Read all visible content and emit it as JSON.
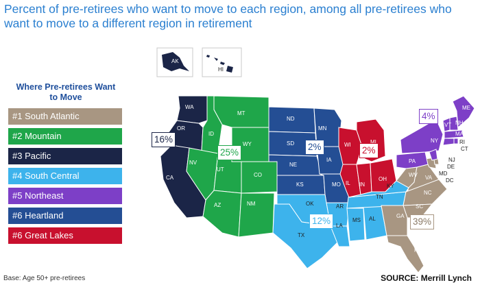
{
  "title": "Percent of pre-retirees who want to move to each region, among all pre-retirees who want to move to a different region in retirement",
  "legend": {
    "title": "Where Pre-retirees Want to Move",
    "items": [
      {
        "label": "#1 South Atlantic",
        "color": "#a89682"
      },
      {
        "label": "#2 Mountain",
        "color": "#1fa64a"
      },
      {
        "label": "#3 Pacific",
        "color": "#1b2547"
      },
      {
        "label": "#4 South Central",
        "color": "#3db3ec"
      },
      {
        "label": "#5 Northeast",
        "color": "#7d3fc7"
      },
      {
        "label": "#6 Heartland",
        "color": "#244e94"
      },
      {
        "label": "#6 Great Lakes",
        "color": "#c8102e"
      }
    ]
  },
  "regions": [
    {
      "name": "South Atlantic",
      "pct": "39%",
      "color": "#a89682"
    },
    {
      "name": "Mountain",
      "pct": "25%",
      "color": "#1fa64a"
    },
    {
      "name": "Pacific",
      "pct": "16%",
      "color": "#1b2547"
    },
    {
      "name": "South Central",
      "pct": "12%",
      "color": "#3db3ec"
    },
    {
      "name": "Northeast",
      "pct": "4%",
      "color": "#7d3fc7"
    },
    {
      "name": "Heartland",
      "pct": "2%",
      "color": "#244e94"
    },
    {
      "name": "Great Lakes",
      "pct": "2%",
      "color": "#c8102e"
    }
  ],
  "states": {
    "WA": "WA",
    "OR": "OR",
    "CA": "CA",
    "AK": "AK",
    "HI": "HI",
    "ID": "ID",
    "MT": "MT",
    "WY": "WY",
    "NV": "NV",
    "UT": "UT",
    "CO": "CO",
    "AZ": "AZ",
    "NM": "NM",
    "ND": "ND",
    "SD": "SD",
    "NE": "NE",
    "KS": "KS",
    "MN": "MN",
    "IA": "IA",
    "MO": "MO",
    "WI": "WI",
    "MI": "MI",
    "IL": "IL",
    "IN": "IN",
    "OH": "OH",
    "OK": "OK",
    "TX": "TX",
    "AR": "AR",
    "LA": "LA",
    "MS": "MS",
    "AL": "AL",
    "TN": "TN",
    "KY": "KY",
    "ME": "ME",
    "NH": "NH",
    "VT": "VT",
    "MA": "MA",
    "NY": "NY",
    "RI": "RI",
    "CT": "CT",
    "PA": "PA",
    "NJ": "NJ",
    "DE": "DE",
    "MD": "MD",
    "DC": "DC",
    "WV": "WV",
    "VA": "VA",
    "NC": "NC",
    "SC": "SC",
    "GA": "GA",
    "FL": "FL"
  },
  "footer": {
    "base": "Base: Age 50+ pre-retirees",
    "source": "SOURCE: Merrill Lynch"
  }
}
